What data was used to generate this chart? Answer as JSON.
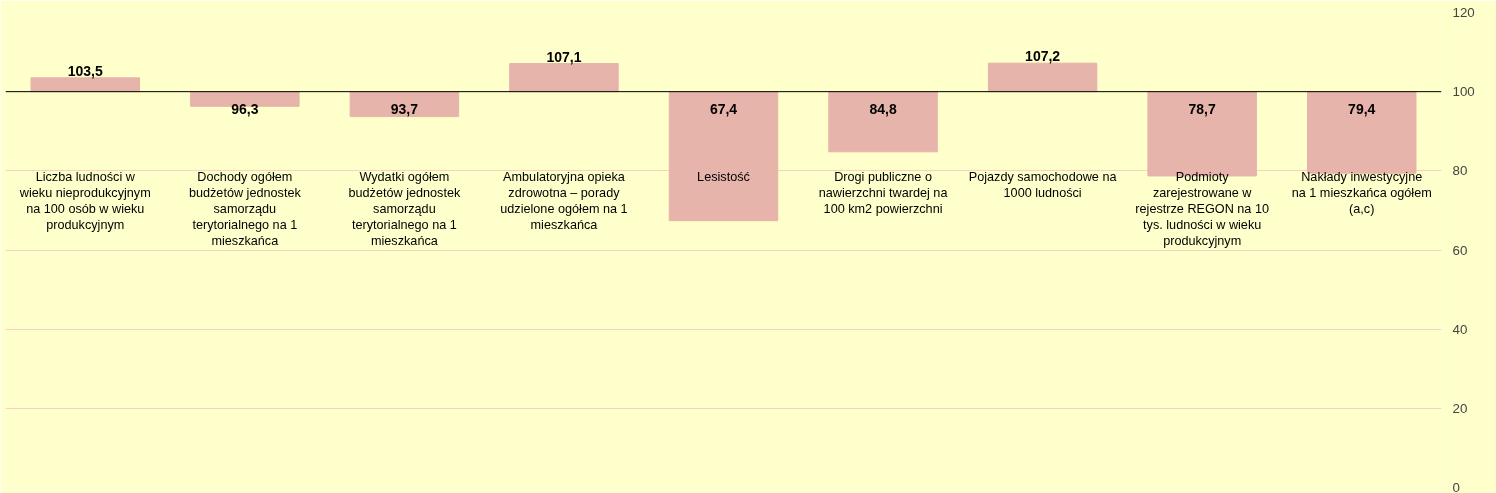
{
  "chart_data": {
    "type": "bar",
    "categories": [
      "Liczba ludności w wieku nieprodukcyjnym na 100 osób w wieku produkcyjnym",
      "Dochody ogółem budżetów jednostek samorządu terytorialnego na 1 mieszkańca",
      "Wydatki ogółem budżetów jednostek samorządu terytorialnego na 1 mieszkańca",
      "Ambulatoryjna opieka zdrowotna – porady udzielone ogółem na 1 mieszkańca",
      "Lesistość",
      "Drogi publiczne o nawierzchni twardej na 100 km2 powierzchni",
      "Pojazdy samochodowe na 1000 ludności",
      "Podmioty zarejestrowane w rejestrze REGON na 10 tys. ludności w wieku produkcyjnym",
      "Nakłady inwestycyjne na 1 mieszkańca ogółem (a,c)"
    ],
    "base": [
      100,
      100,
      100,
      100,
      100,
      100,
      100,
      100,
      100
    ],
    "values": [
      3.5,
      -3.7,
      -6.3,
      7.1,
      -32.6,
      -15.2,
      7.2,
      -21.3,
      -20.6
    ],
    "value_labels": [
      "103,5",
      "96,3",
      "93,7",
      "107,1",
      "67,4",
      "84,8",
      "107,2",
      "78,7",
      "79,4"
    ],
    "color": "#e6b4aa",
    "ylim": [
      0,
      120
    ],
    "yticks": [
      0,
      20,
      40,
      60,
      80,
      100,
      120
    ],
    "ref_lines": [
      {
        "axis": "y",
        "value": 100,
        "color": "#000000"
      }
    ],
    "grid": "y"
  }
}
